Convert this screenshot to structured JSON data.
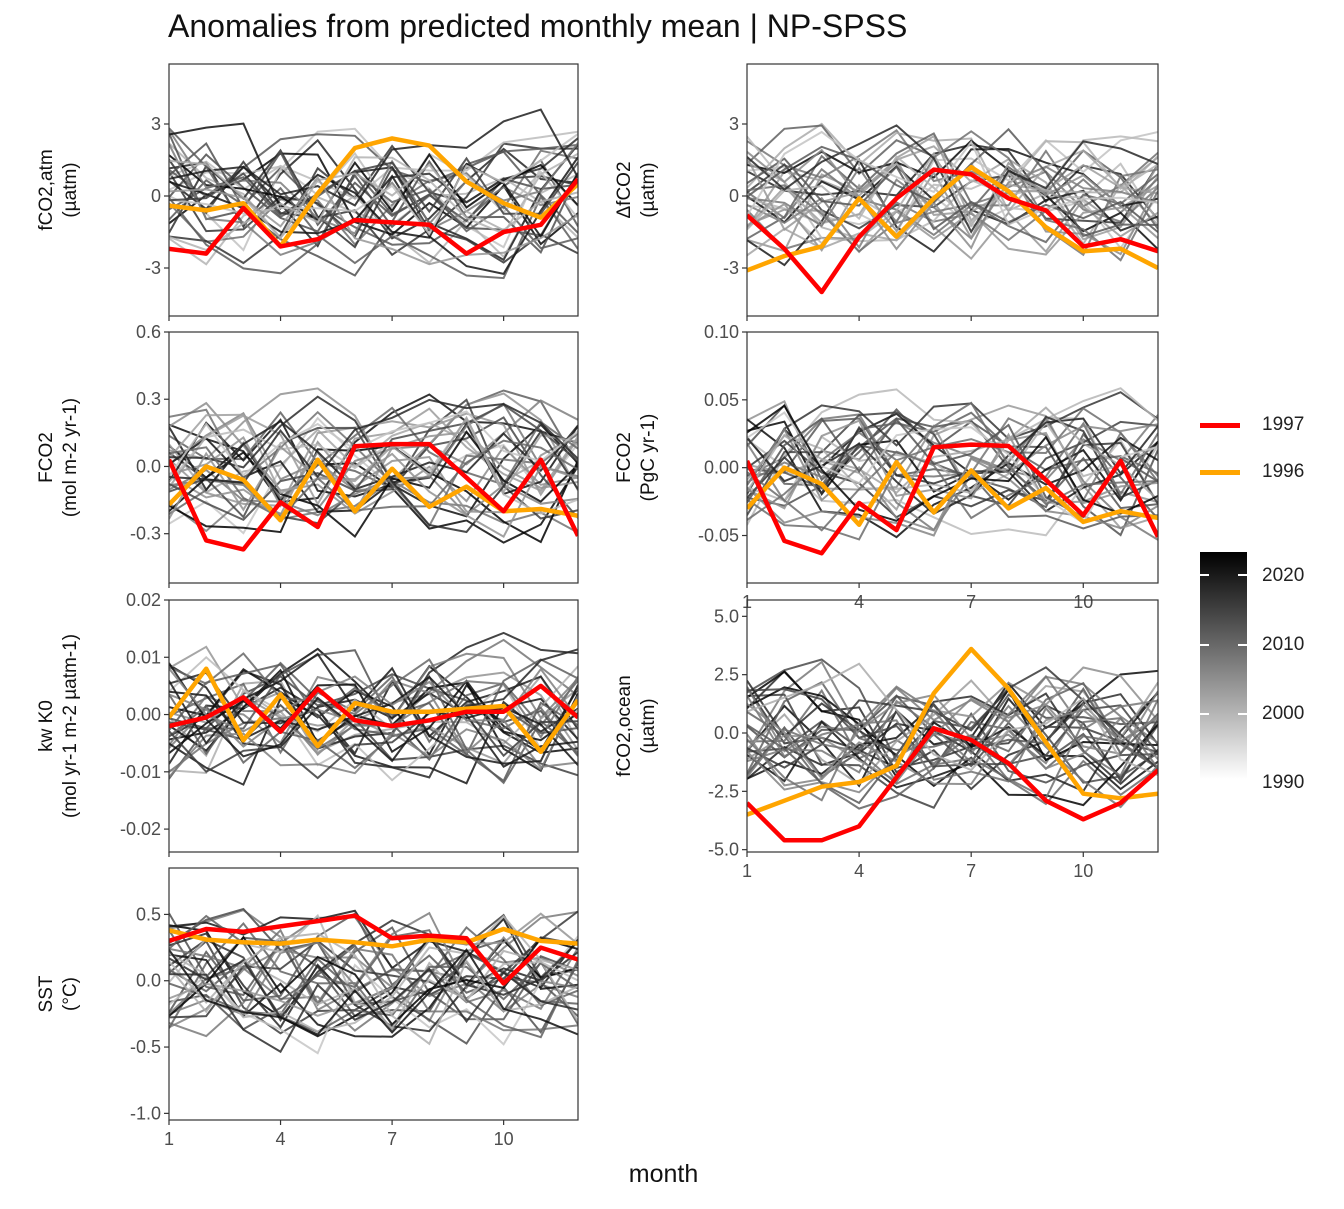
{
  "title": "Anomalies from predicted monthly mean | NP-SPSS",
  "xlabel": "month",
  "legend": [
    {
      "label": "1997",
      "color": "#ff0000"
    },
    {
      "label": "1996",
      "color": "#ffa500"
    }
  ],
  "colorbar": {
    "labels": [
      "2020",
      "2010",
      "2000",
      "1990"
    ],
    "range": [
      1990,
      2022
    ]
  },
  "chart_data": [
    {
      "type": "line",
      "panel": "fco2-atm",
      "ylabel": [
        "fCO2,atm",
        "(µatm)"
      ],
      "xlim": [
        1,
        12
      ],
      "ylim": [
        -5,
        5.5
      ],
      "xticks": [
        "1",
        "4",
        "7",
        "10"
      ],
      "yticks": [
        -3,
        0,
        3
      ],
      "yticklabels": [
        "-3",
        "0",
        "3"
      ],
      "x": [
        1,
        2,
        3,
        4,
        5,
        6,
        7,
        8,
        9,
        10,
        11,
        12
      ],
      "series": [
        {
          "name": "1997",
          "values": [
            -2.2,
            -2.4,
            -0.5,
            -2.1,
            -1.8,
            -1.0,
            -1.1,
            -1.2,
            -2.4,
            -1.5,
            -1.2,
            0.7
          ]
        },
        {
          "name": "1996",
          "values": [
            -0.4,
            -0.6,
            -0.3,
            -2.1,
            0.1,
            2.0,
            2.4,
            2.1,
            0.6,
            -0.3,
            -0.9,
            0.5
          ]
        }
      ]
    },
    {
      "type": "line",
      "panel": "delta-fco2",
      "ylabel": [
        "ΔfCO2",
        "(µatm)"
      ],
      "xlim": [
        1,
        12
      ],
      "ylim": [
        -5,
        5.5
      ],
      "xticks": [
        "1",
        "4",
        "7",
        "10"
      ],
      "yticks": [
        -3,
        0,
        3
      ],
      "yticklabels": [
        "-3",
        "0",
        "3"
      ],
      "x": [
        1,
        2,
        3,
        4,
        5,
        6,
        7,
        8,
        9,
        10,
        11,
        12
      ],
      "series": [
        {
          "name": "1997",
          "values": [
            -0.8,
            -2.2,
            -4.0,
            -1.7,
            -0.1,
            1.1,
            0.9,
            -0.1,
            -0.6,
            -2.1,
            -1.8,
            -2.3
          ]
        },
        {
          "name": "1996",
          "values": [
            -3.1,
            -2.5,
            -2.1,
            -0.1,
            -1.7,
            -0.1,
            1.2,
            0.2,
            -1.3,
            -2.3,
            -2.2,
            -3.0
          ]
        }
      ]
    },
    {
      "type": "line",
      "panel": "fco2-flux-mol",
      "ylabel": [
        "FCO2",
        "(mol m-2 yr-1)"
      ],
      "xlim": [
        1,
        12
      ],
      "ylim": [
        -0.52,
        0.6
      ],
      "xticks": [
        "1",
        "4",
        "7",
        "10"
      ],
      "yticks": [
        -0.3,
        0,
        0.3,
        0.6
      ],
      "yticklabels": [
        "-0.3",
        "0.0",
        "0.3",
        "0.6"
      ],
      "x": [
        1,
        2,
        3,
        4,
        5,
        6,
        7,
        8,
        9,
        10,
        11,
        12
      ],
      "series": [
        {
          "name": "1997",
          "values": [
            0.03,
            -0.33,
            -0.37,
            -0.16,
            -0.27,
            0.09,
            0.1,
            0.1,
            -0.05,
            -0.2,
            0.03,
            -0.31
          ]
        },
        {
          "name": "1996",
          "values": [
            -0.17,
            0.0,
            -0.06,
            -0.24,
            0.03,
            -0.2,
            -0.01,
            -0.18,
            -0.09,
            -0.2,
            -0.19,
            -0.22
          ]
        }
      ]
    },
    {
      "type": "line",
      "panel": "fco2-flux-pgc",
      "ylabel": [
        "FCO2",
        "(PgC yr-1)"
      ],
      "xlim": [
        1,
        12
      ],
      "ylim": [
        -0.085,
        0.1
      ],
      "xticks": [
        "1",
        "4",
        "7",
        "10"
      ],
      "yticks": [
        -0.05,
        0,
        0.05,
        0.1
      ],
      "yticklabels": [
        "-0.05",
        "0.00",
        "0.05",
        "0.10"
      ],
      "x": [
        1,
        2,
        3,
        4,
        5,
        6,
        7,
        8,
        9,
        10,
        11,
        12
      ],
      "series": [
        {
          "name": "1997",
          "values": [
            0.005,
            -0.054,
            -0.063,
            -0.026,
            -0.046,
            0.015,
            0.017,
            0.016,
            -0.009,
            -0.035,
            0.005,
            -0.051
          ]
        },
        {
          "name": "1996",
          "values": [
            -0.03,
            0.0,
            -0.012,
            -0.042,
            0.004,
            -0.033,
            -0.002,
            -0.03,
            -0.015,
            -0.04,
            -0.032,
            -0.037
          ]
        }
      ]
    },
    {
      "type": "line",
      "panel": "kw-k0",
      "ylabel": [
        "kw K0",
        "(mol yr-1 m-2 µatm-1)"
      ],
      "xlim": [
        1,
        12
      ],
      "ylim": [
        -0.024,
        0.02
      ],
      "xticks": [
        "1",
        "4",
        "7",
        "10"
      ],
      "yticks": [
        -0.02,
        -0.01,
        0,
        0.01,
        0.02
      ],
      "yticklabels": [
        "-0.02",
        "-0.01",
        "0.00",
        "0.01",
        "0.02"
      ],
      "x": [
        1,
        2,
        3,
        4,
        5,
        6,
        7,
        8,
        9,
        10,
        11,
        12
      ],
      "series": [
        {
          "name": "1997",
          "values": [
            -0.002,
            -0.0005,
            0.003,
            -0.003,
            0.0045,
            -0.001,
            -0.002,
            -0.001,
            0.0005,
            0.0005,
            0.005,
            -0.0005
          ]
        },
        {
          "name": "1996",
          "values": [
            -0.0005,
            0.008,
            -0.0045,
            0.0035,
            -0.0055,
            0.002,
            0.0005,
            0.0005,
            0.001,
            0.0015,
            -0.0065,
            0.0025
          ]
        }
      ]
    },
    {
      "type": "line",
      "panel": "fco2-ocean",
      "ylabel": [
        "fCO2,ocean",
        "(µatm)"
      ],
      "xlim": [
        1,
        12
      ],
      "ylim": [
        -5.1,
        5.7
      ],
      "xticks": [
        "1",
        "4",
        "7",
        "10"
      ],
      "yticks": [
        -5,
        -2.5,
        0,
        2.5,
        5
      ],
      "yticklabels": [
        "-5.0",
        "-2.5",
        "0.0",
        "2.5",
        "5.0"
      ],
      "x": [
        1,
        2,
        3,
        4,
        5,
        6,
        7,
        8,
        9,
        10,
        11,
        12
      ],
      "series": [
        {
          "name": "1997",
          "values": [
            -3.0,
            -4.6,
            -4.6,
            -4.0,
            -1.9,
            0.2,
            -0.3,
            -1.3,
            -2.9,
            -3.7,
            -3.0,
            -1.6
          ]
        },
        {
          "name": "1996",
          "values": [
            -3.5,
            -2.9,
            -2.3,
            -2.1,
            -1.4,
            1.7,
            3.6,
            1.9,
            -0.4,
            -2.6,
            -2.8,
            -2.6
          ]
        }
      ]
    },
    {
      "type": "line",
      "panel": "sst",
      "ylabel": [
        "SST",
        "(°C)"
      ],
      "xlim": [
        1,
        12
      ],
      "ylim": [
        -1.05,
        0.85
      ],
      "xticks": [
        "1",
        "4",
        "7",
        "10"
      ],
      "yticks": [
        -1,
        -0.5,
        0,
        0.5
      ],
      "yticklabels": [
        "-1.0",
        "-0.5",
        "0.0",
        "0.5"
      ],
      "x": [
        1,
        2,
        3,
        4,
        5,
        6,
        7,
        8,
        9,
        10,
        11,
        12
      ],
      "series": [
        {
          "name": "1997",
          "values": [
            0.3,
            0.39,
            0.37,
            0.41,
            0.45,
            0.49,
            0.32,
            0.34,
            0.32,
            -0.02,
            0.25,
            0.16
          ]
        },
        {
          "name": "1996",
          "values": [
            0.38,
            0.31,
            0.29,
            0.28,
            0.31,
            0.29,
            0.26,
            0.31,
            0.29,
            0.39,
            0.3,
            0.28
          ]
        }
      ]
    }
  ]
}
